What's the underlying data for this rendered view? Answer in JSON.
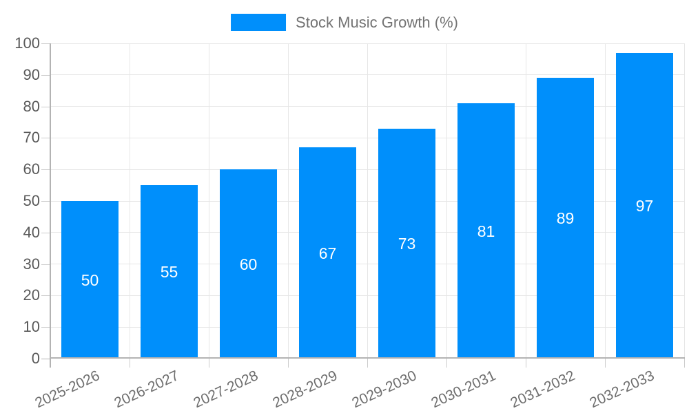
{
  "chart_data": {
    "type": "bar",
    "legend": "Stock Music Growth (%)",
    "legend_position": "top",
    "categories": [
      "2025-2026",
      "2026-2027",
      "2027-2028",
      "2028-2029",
      "2029-2030",
      "2030-2031",
      "2031-2032",
      "2032-2033"
    ],
    "values": [
      50,
      55,
      60,
      67,
      73,
      81,
      89,
      97
    ],
    "ylim": [
      0,
      100
    ],
    "yticks": [
      0,
      10,
      20,
      30,
      40,
      50,
      60,
      70,
      80,
      90,
      100
    ],
    "grid": true,
    "colors": {
      "bar": "#008FFB",
      "value_label": "#FFFFFF",
      "axis_line": "#B3B3B3",
      "gridline": "#E6E6E6",
      "tick": "#CCCCCC",
      "y_label": "#595959",
      "x_label": "#6E6E6E",
      "legend_text": "#737373"
    }
  }
}
